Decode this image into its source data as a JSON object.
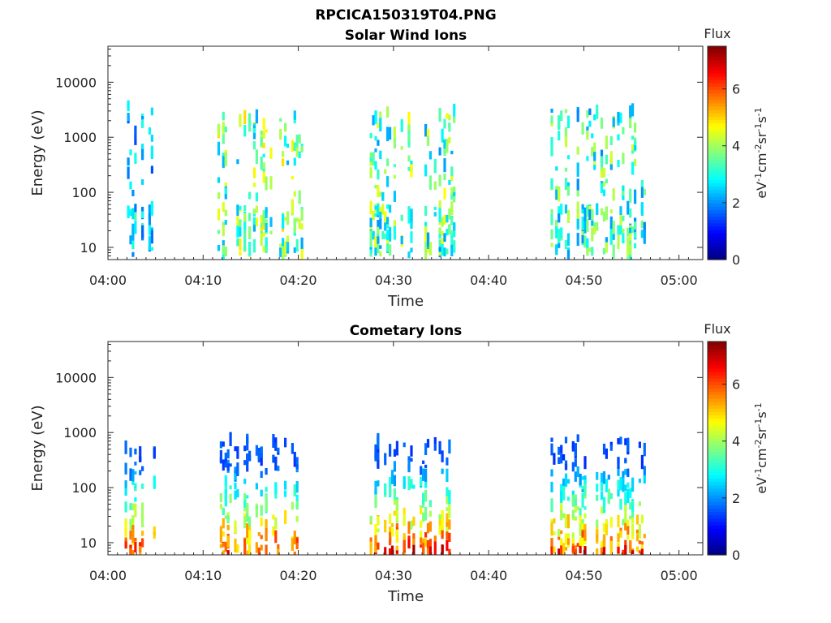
{
  "figure": {
    "title": "RPCICA150319T04.PNG"
  },
  "chart_data": [
    {
      "type": "heatmap",
      "title": "Solar Wind Ions",
      "xlabel": "Time",
      "ylabel": "Energy (eV)",
      "xlim_minutes": [
        0,
        62.5
      ],
      "ylim": [
        6,
        45000
      ],
      "yscale": "log",
      "x_ticks": [
        "04:00",
        "04:10",
        "04:20",
        "04:30",
        "04:40",
        "04:50",
        "05:00"
      ],
      "y_ticks": [
        "10",
        "100",
        "1000",
        "10000"
      ],
      "colorbar": {
        "title": "Flux",
        "label": "eV-1cm-2sr-1s-1",
        "range": [
          0,
          7.5
        ],
        "ticks": [
          "0",
          "2",
          "4",
          "6"
        ]
      },
      "bursts": [
        {
          "t": [
            2.0,
            5.0
          ],
          "peak_energy": 600,
          "peak_flux": 3.2
        },
        {
          "t": [
            11.5,
            20.5
          ],
          "peak_energy": 500,
          "peak_flux": 4.8
        },
        {
          "t": [
            27.5,
            36.5
          ],
          "peak_energy": 500,
          "peak_flux": 4.5
        },
        {
          "t": [
            46.5,
            56.5
          ],
          "peak_energy": 500,
          "peak_flux": 4.2
        }
      ]
    },
    {
      "type": "heatmap",
      "title": "Cometary Ions",
      "xlabel": "Time",
      "ylabel": "Energy (eV)",
      "xlim_minutes": [
        0,
        62.5
      ],
      "ylim": [
        6,
        45000
      ],
      "yscale": "log",
      "x_ticks": [
        "04:00",
        "04:10",
        "04:20",
        "04:30",
        "04:40",
        "04:50",
        "05:00"
      ],
      "y_ticks": [
        "10",
        "100",
        "1000",
        "10000"
      ],
      "colorbar": {
        "title": "Flux",
        "label": "eV-1cm-2sr-1s-1",
        "range": [
          0,
          7.5
        ],
        "ticks": [
          "0",
          "2",
          "4",
          "6"
        ]
      },
      "bursts": [
        {
          "t": [
            1.5,
            5.0
          ],
          "peak_energy": 10,
          "peak_flux": 6.5
        },
        {
          "t": [
            11.5,
            20.5
          ],
          "peak_energy": 15,
          "peak_flux": 6.5
        },
        {
          "t": [
            27.5,
            36.5
          ],
          "peak_energy": 15,
          "peak_flux": 6.8
        },
        {
          "t": [
            46.5,
            56.5
          ],
          "peak_energy": 15,
          "peak_flux": 6.5
        }
      ]
    }
  ]
}
